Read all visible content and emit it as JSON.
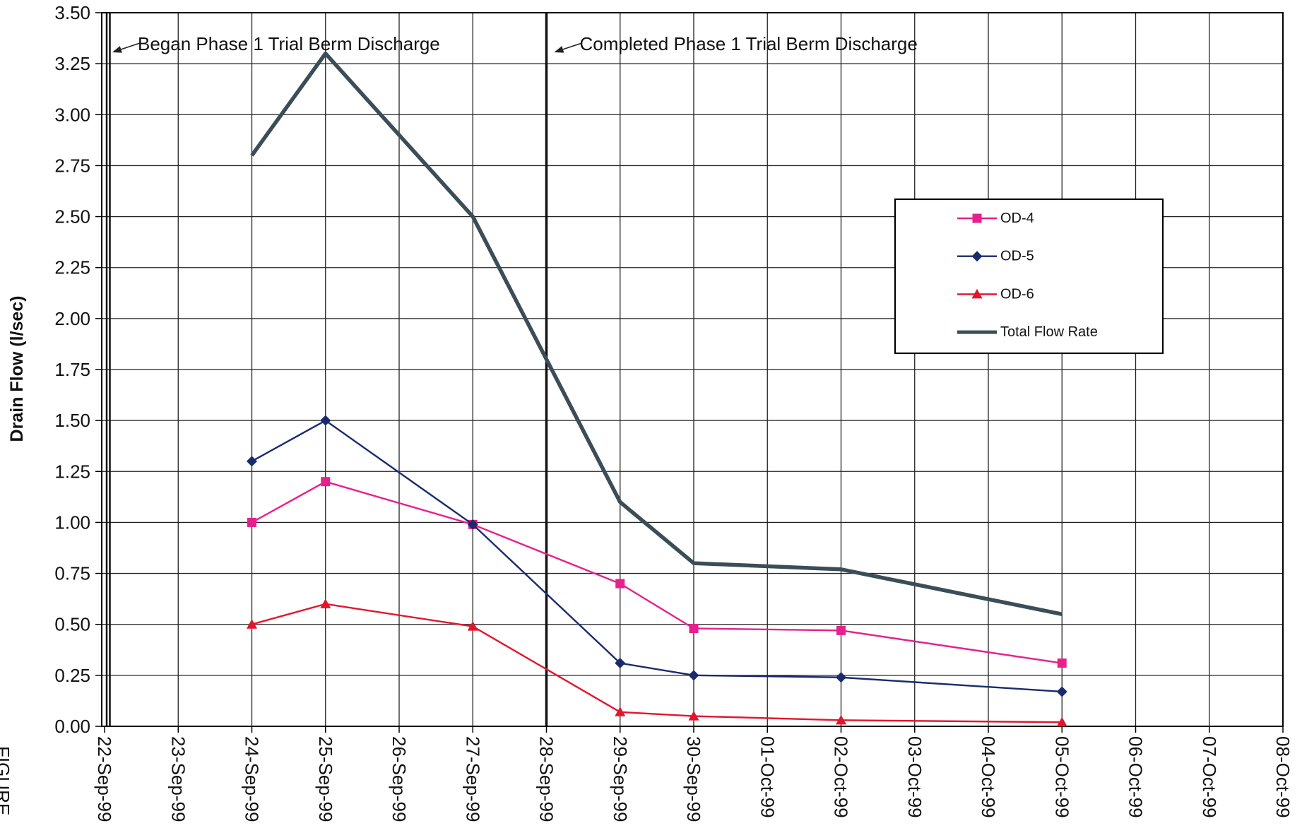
{
  "page": {
    "figure_label": "FIGURE"
  },
  "chart_data": {
    "type": "line",
    "ylabel": "Drain Flow (l/sec)",
    "categories": [
      "22-Sep-99",
      "23-Sep-99",
      "24-Sep-99",
      "25-Sep-99",
      "26-Sep-99",
      "27-Sep-99",
      "28-Sep-99",
      "29-Sep-99",
      "30-Sep-99",
      "01-Oct-99",
      "02-Oct-99",
      "03-Oct-99",
      "04-Oct-99",
      "05-Oct-99",
      "06-Oct-99",
      "07-Oct-99",
      "08-Oct-99"
    ],
    "ylim": [
      0,
      3.5
    ],
    "yticks": [
      "0.00",
      "0.25",
      "0.50",
      "0.75",
      "1.00",
      "1.25",
      "1.50",
      "1.75",
      "2.00",
      "2.25",
      "2.50",
      "2.75",
      "3.00",
      "3.25",
      "3.50"
    ],
    "grid": true,
    "legend_position": "upper-right",
    "series": [
      {
        "name": "OD-4",
        "color": "#e6208c",
        "marker": "square",
        "x": [
          "24-Sep-99",
          "25-Sep-99",
          "27-Sep-99",
          "29-Sep-99",
          "30-Sep-99",
          "02-Oct-99",
          "05-Oct-99"
        ],
        "y": [
          1.0,
          1.2,
          0.99,
          0.7,
          0.48,
          0.47,
          0.31
        ]
      },
      {
        "name": "OD-5",
        "color": "#1a2b6d",
        "marker": "diamond",
        "x": [
          "24-Sep-99",
          "25-Sep-99",
          "27-Sep-99",
          "29-Sep-99",
          "30-Sep-99",
          "02-Oct-99",
          "05-Oct-99"
        ],
        "y": [
          1.3,
          1.5,
          0.99,
          0.31,
          0.25,
          0.24,
          0.17
        ]
      },
      {
        "name": "OD-6",
        "color": "#e3152d",
        "marker": "triangle",
        "x": [
          "24-Sep-99",
          "25-Sep-99",
          "27-Sep-99",
          "29-Sep-99",
          "30-Sep-99",
          "02-Oct-99",
          "05-Oct-99"
        ],
        "y": [
          0.5,
          0.6,
          0.49,
          0.07,
          0.05,
          0.03,
          0.02
        ]
      },
      {
        "name": "Total Flow Rate",
        "color": "#3b4d57",
        "marker": "none",
        "x": [
          "24-Sep-99",
          "25-Sep-99",
          "27-Sep-99",
          "29-Sep-99",
          "30-Sep-99",
          "02-Oct-99",
          "05-Oct-99"
        ],
        "y": [
          2.8,
          3.3,
          2.5,
          1.1,
          0.8,
          0.77,
          0.55
        ]
      }
    ],
    "annotations": [
      {
        "text": "Began Phase 1 Trial Berm Discharge",
        "x": "22-Sep-99",
        "line": "double"
      },
      {
        "text": "Completed Phase 1 Trial Berm Discharge",
        "x": "28-Sep-99",
        "line": "single"
      }
    ]
  }
}
